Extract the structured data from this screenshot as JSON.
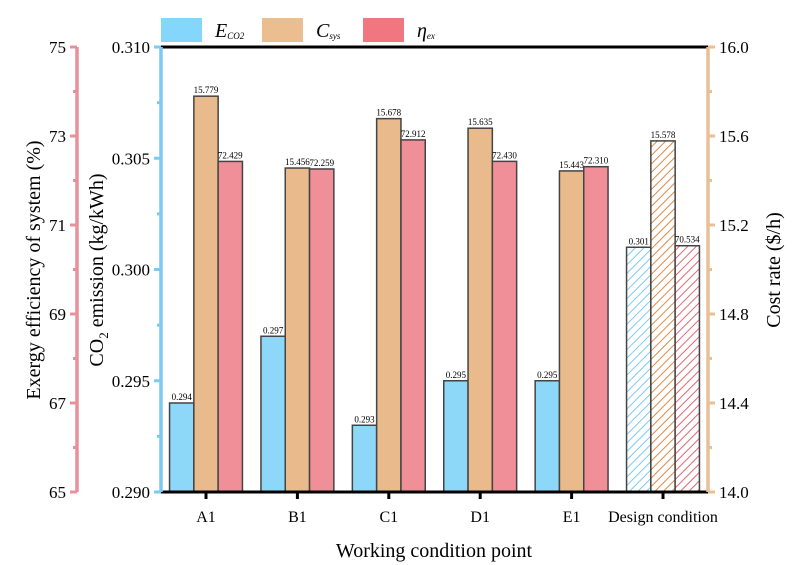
{
  "chart_data": {
    "type": "bar",
    "title": "",
    "xlabel": "Working condition point",
    "categories": [
      "A1",
      "B1",
      "C1",
      "D1",
      "E1",
      "Design condition"
    ],
    "hatched_category": "Design condition",
    "axes": {
      "eta": {
        "label": "Exergy efficiency of system (%)",
        "ylim": [
          65,
          75
        ],
        "ticks": [
          "65",
          "67",
          "69",
          "71",
          "73",
          "75"
        ],
        "color": "#e8909a"
      },
      "co2": {
        "label_main": "CO",
        "label_sub": "2",
        "label_rest": " emission (kg/kWh)",
        "ylim": [
          0.29,
          0.31
        ],
        "ticks": [
          "0.290",
          "0.295",
          "0.300",
          "0.305",
          "0.310"
        ],
        "color": "#7ccaf2"
      },
      "cost": {
        "label": "Cost rate ($/h)",
        "ylim": [
          14.0,
          16.0
        ],
        "ticks": [
          "14.0",
          "14.4",
          "14.8",
          "15.2",
          "15.6",
          "16.0"
        ],
        "color": "#e8c095"
      }
    },
    "legend_position": "top-left",
    "series": [
      {
        "name": "E",
        "name_sub": "CO2",
        "axis": "co2",
        "color": "#8dd7f8",
        "hatch": "#7ccaf2",
        "values": [
          0.294,
          0.297,
          0.293,
          0.295,
          0.295,
          0.301
        ],
        "labels": [
          "0.294",
          "0.297",
          "0.293",
          "0.295",
          "0.295",
          "0.301"
        ]
      },
      {
        "name": "C",
        "name_sub": "sys",
        "axis": "cost",
        "color": "#e9bb8c",
        "hatch": "#e08a45",
        "values": [
          15.779,
          15.456,
          15.678,
          15.635,
          15.443,
          15.578
        ],
        "labels": [
          "15.779",
          "15.456",
          "15.678",
          "15.635",
          "15.443",
          "15.578"
        ]
      },
      {
        "name": "η",
        "name_sub": "ex",
        "axis": "eta",
        "color": "#f08f98",
        "hatch": "#e06778",
        "values": [
          72.429,
          72.259,
          72.912,
          72.43,
          72.31,
          70.534
        ],
        "labels": [
          "72.429",
          "72.259",
          "72.912",
          "72.430",
          "72.310",
          "70.534"
        ]
      }
    ],
    "legend_colors": [
      "#84d6fb",
      "#ebbe90",
      "#f07780"
    ]
  }
}
